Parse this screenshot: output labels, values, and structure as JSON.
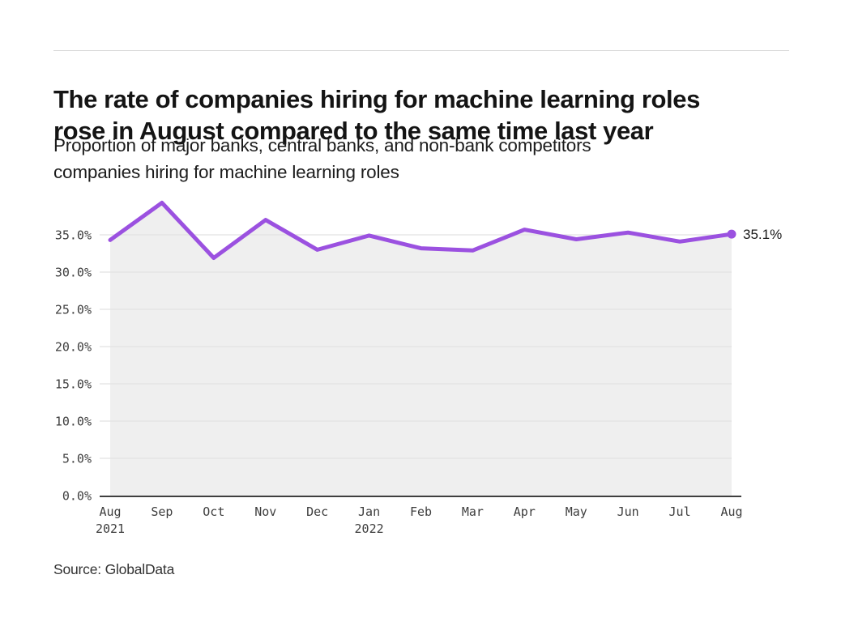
{
  "page": {
    "title_line1": "The rate of companies hiring for machine learning roles",
    "title_line2": "rose in August compared to the same time last year",
    "subtitle_line1": "Proportion of major banks, central banks, and non-bank competitors",
    "subtitle_line2": "companies hiring for machine learning roles",
    "source": "Source: GlobalData"
  },
  "chart_data": {
    "type": "line",
    "title": "The rate of companies hiring for machine learning roles rose in August compared to the same time last year",
    "subtitle": "Proportion of major banks, central banks, and non-bank competitors companies hiring for machine learning roles",
    "categories": [
      "Aug 2021",
      "Sep 2021",
      "Oct 2021",
      "Nov 2021",
      "Dec 2021",
      "Jan 2022",
      "Feb 2022",
      "Mar 2022",
      "Apr 2022",
      "May 2022",
      "Jun 2022",
      "Jul 2022",
      "Aug 2022"
    ],
    "x_labels": [
      "Aug",
      "Sep",
      "Oct",
      "Nov",
      "Dec",
      "Jan",
      "Feb",
      "Mar",
      "Apr",
      "May",
      "Jun",
      "Jul",
      "Aug"
    ],
    "x_sublabels": [
      {
        "index": 0,
        "label": "2021"
      },
      {
        "index": 5,
        "label": "2022"
      }
    ],
    "series": [
      {
        "name": "Proportion of companies hiring for machine learning roles",
        "values": [
          34.3,
          39.3,
          31.9,
          37.0,
          33.0,
          34.9,
          33.2,
          32.9,
          35.7,
          34.4,
          35.3,
          34.1,
          35.1
        ]
      }
    ],
    "end_label": "35.1%",
    "y_ticks": [
      {
        "v": 0,
        "label": "0.0%"
      },
      {
        "v": 5,
        "label": "5.0%"
      },
      {
        "v": 10,
        "label": "10.0%"
      },
      {
        "v": 15,
        "label": "15.0%"
      },
      {
        "v": 20,
        "label": "20.0%"
      },
      {
        "v": 25,
        "label": "25.0%"
      },
      {
        "v": 30,
        "label": "30.0%"
      },
      {
        "v": 35,
        "label": "35.0%"
      }
    ],
    "ylim": [
      0,
      41
    ],
    "grid": true,
    "legend_position": "none",
    "colors": {
      "line": "#9b51e0",
      "area_fill": "#efefef",
      "gridline": "#e2e2e2",
      "axis_line": "#3f3f3f",
      "tick_text": "#3d3d3d",
      "end_label_text": "#1a1a1a"
    }
  }
}
